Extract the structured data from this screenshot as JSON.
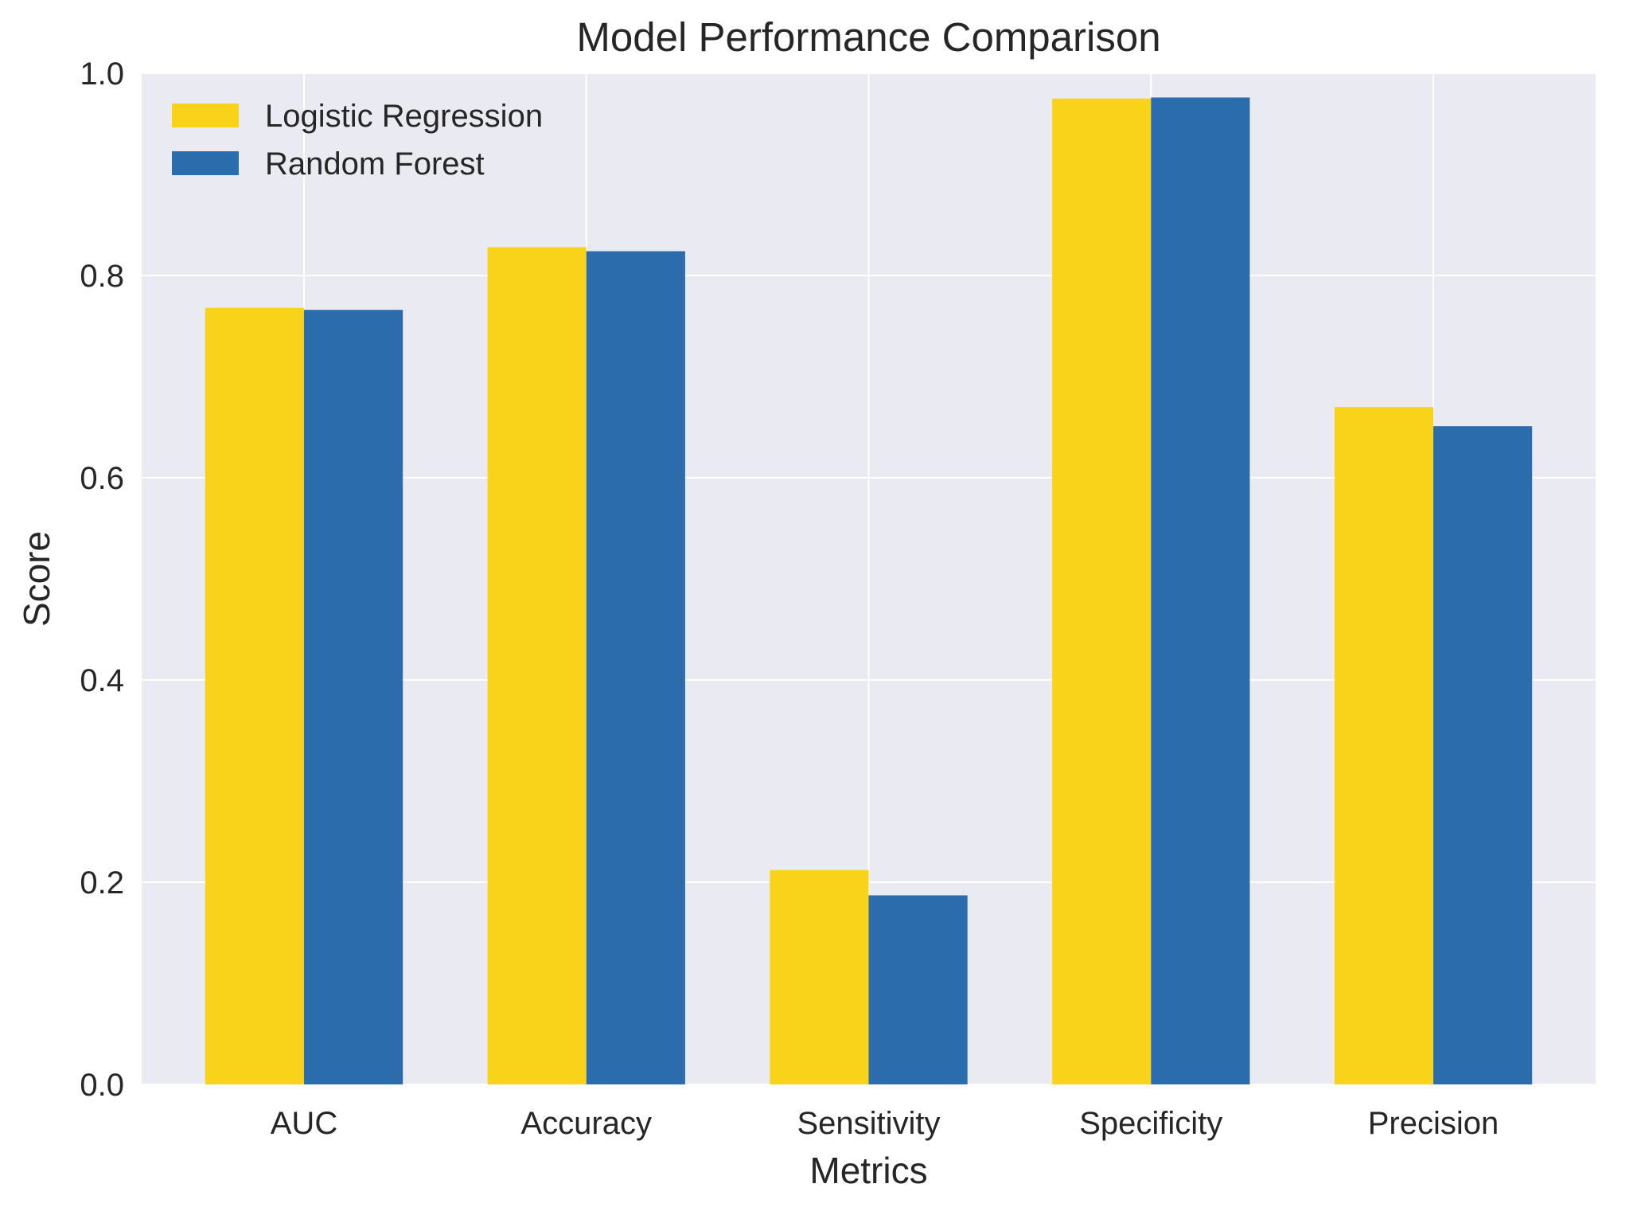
{
  "chart_data": {
    "type": "bar",
    "title": "Model Performance Comparison",
    "xlabel": "Metrics",
    "ylabel": "Score",
    "categories": [
      "AUC",
      "Accuracy",
      "Sensitivity",
      "Specificity",
      "Precision"
    ],
    "ylim": [
      0,
      1.0
    ],
    "yticks": [
      "0.0",
      "0.2",
      "0.4",
      "0.6",
      "0.8",
      "1.0"
    ],
    "grid": true,
    "legend_position": "top-left",
    "series": [
      {
        "name": "Logistic Regression",
        "color": "#f9d31a",
        "values": [
          0.768,
          0.828,
          0.212,
          0.975,
          0.67
        ]
      },
      {
        "name": "Random Forest",
        "color": "#2b6cad",
        "values": [
          0.766,
          0.824,
          0.187,
          0.976,
          0.651
        ]
      }
    ],
    "plot_background": "#eaeaf2",
    "grid_color": "#ffffff"
  }
}
